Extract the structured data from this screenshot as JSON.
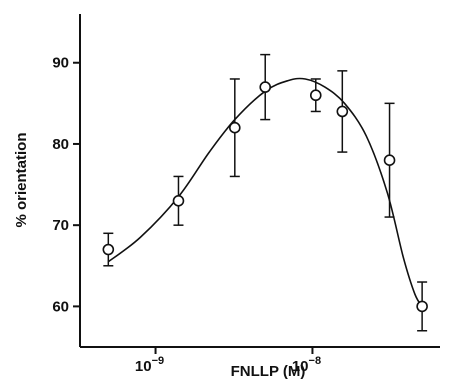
{
  "chart_data": {
    "type": "scatter",
    "xlabel": "FNLLP (M)",
    "ylabel": "% orientation",
    "x_scale": "log",
    "xlim": [
      3.3e-10,
      6.5e-08
    ],
    "ylim": [
      55,
      96
    ],
    "yticks": [
      60,
      70,
      80,
      90
    ],
    "xticks": [
      {
        "value": 1e-09,
        "base": "10",
        "exp": "-9"
      },
      {
        "value": 1e-08,
        "base": "10",
        "exp": "-8"
      }
    ],
    "points": [
      {
        "x": 5e-10,
        "y": 67,
        "err_low": 65,
        "err_high": 69
      },
      {
        "x": 1.4e-09,
        "y": 73,
        "err_low": 70,
        "err_high": 76
      },
      {
        "x": 3.2e-09,
        "y": 82,
        "err_low": 76,
        "err_high": 88
      },
      {
        "x": 5e-09,
        "y": 87,
        "err_low": 83,
        "err_high": 91
      },
      {
        "x": 1.05e-08,
        "y": 86,
        "err_low": 84,
        "err_high": 88
      },
      {
        "x": 1.55e-08,
        "y": 84,
        "err_low": 79,
        "err_high": 89
      },
      {
        "x": 3.1e-08,
        "y": 78,
        "err_low": 71,
        "err_high": 85
      },
      {
        "x": 5e-08,
        "y": 60,
        "err_low": 57,
        "err_high": 63
      }
    ],
    "fit_curve": [
      {
        "x": 5e-10,
        "y": 65.5
      },
      {
        "x": 8e-10,
        "y": 68.5
      },
      {
        "x": 1.4e-09,
        "y": 73.5
      },
      {
        "x": 2.2e-09,
        "y": 79
      },
      {
        "x": 3.2e-09,
        "y": 83
      },
      {
        "x": 5e-09,
        "y": 86.5
      },
      {
        "x": 7e-09,
        "y": 87.8
      },
      {
        "x": 9e-09,
        "y": 88
      },
      {
        "x": 1.2e-08,
        "y": 87
      },
      {
        "x": 1.6e-08,
        "y": 85
      },
      {
        "x": 2.2e-08,
        "y": 81
      },
      {
        "x": 3e-08,
        "y": 74
      },
      {
        "x": 3.8e-08,
        "y": 66
      },
      {
        "x": 4.5e-08,
        "y": 61.5
      },
      {
        "x": 5e-08,
        "y": 60
      }
    ],
    "grid": false,
    "legend": "none"
  }
}
